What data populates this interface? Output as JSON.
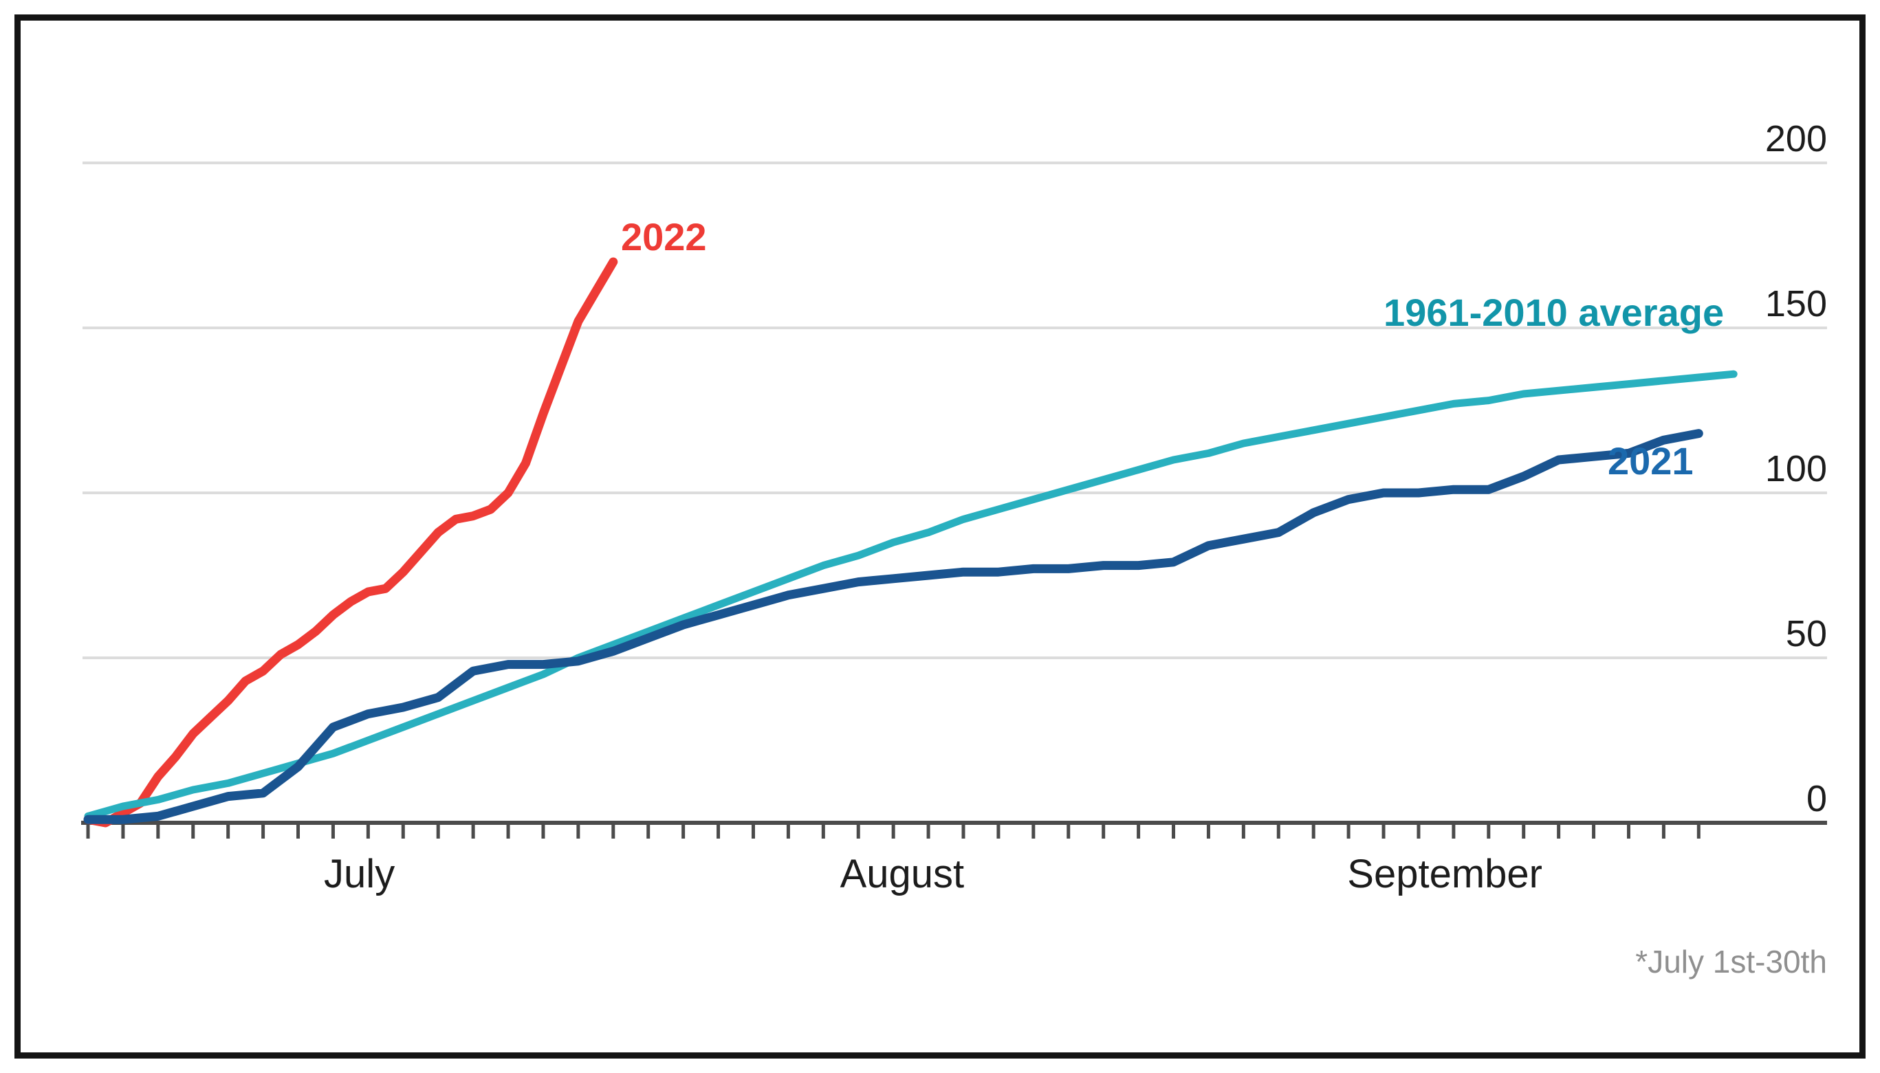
{
  "frame": {
    "border_color": "#141414",
    "background": "#ffffff"
  },
  "chart_data": {
    "type": "line",
    "title": "",
    "x_axis": {
      "start_date": "July 1",
      "end_date": "September 30",
      "month_labels": [
        "July",
        "August",
        "September"
      ],
      "month_center_days": [
        15.5,
        46.5,
        77.5
      ],
      "tick_interval_days": 2,
      "tick_day_range": [
        0,
        92
      ]
    },
    "y_axis": {
      "side": "right",
      "range": [
        0,
        200
      ],
      "ticks": [
        0,
        50,
        100,
        150,
        200
      ],
      "tick_labels": [
        "0",
        "50",
        "100",
        "150",
        "200"
      ],
      "gridlines_at": [
        50,
        100,
        150,
        200
      ],
      "grid_color": "#dcdcdc",
      "axis_color": "#4b4b4b"
    },
    "grid": "horizontal-only",
    "legend_position": "inline-labels",
    "footnote": "*July 1st-30th",
    "series": [
      {
        "name": "2022",
        "label": "2022",
        "color": "#ee3b35",
        "label_color": "#ee3b35",
        "stroke_width": 13,
        "points": [
          [
            0,
            1
          ],
          [
            1,
            0
          ],
          [
            2,
            3
          ],
          [
            3,
            6
          ],
          [
            4,
            14
          ],
          [
            5,
            20
          ],
          [
            6,
            27
          ],
          [
            7,
            32
          ],
          [
            8,
            37
          ],
          [
            9,
            43
          ],
          [
            10,
            46
          ],
          [
            11,
            51
          ],
          [
            12,
            54
          ],
          [
            13,
            58
          ],
          [
            14,
            63
          ],
          [
            15,
            67
          ],
          [
            16,
            70
          ],
          [
            17,
            71
          ],
          [
            18,
            76
          ],
          [
            19,
            82
          ],
          [
            20,
            88
          ],
          [
            21,
            92
          ],
          [
            22,
            93
          ],
          [
            23,
            95
          ],
          [
            24,
            100
          ],
          [
            25,
            109
          ],
          [
            26,
            124
          ],
          [
            27,
            138
          ],
          [
            28,
            152
          ],
          [
            29,
            161
          ],
          [
            30,
            170
          ]
        ]
      },
      {
        "name": "1961-2010 average",
        "label": "1961-2010 average",
        "color": "#29b0bf",
        "label_color": "#1295a9",
        "stroke_width": 11,
        "points": [
          [
            0,
            2
          ],
          [
            2,
            5
          ],
          [
            4,
            7
          ],
          [
            6,
            10
          ],
          [
            8,
            12
          ],
          [
            10,
            15
          ],
          [
            12,
            18
          ],
          [
            14,
            21
          ],
          [
            16,
            25
          ],
          [
            18,
            29
          ],
          [
            20,
            33
          ],
          [
            22,
            37
          ],
          [
            24,
            41
          ],
          [
            26,
            45
          ],
          [
            28,
            50
          ],
          [
            30,
            54
          ],
          [
            32,
            58
          ],
          [
            34,
            62
          ],
          [
            36,
            66
          ],
          [
            38,
            70
          ],
          [
            40,
            74
          ],
          [
            42,
            78
          ],
          [
            44,
            81
          ],
          [
            46,
            85
          ],
          [
            48,
            88
          ],
          [
            50,
            92
          ],
          [
            52,
            95
          ],
          [
            54,
            98
          ],
          [
            56,
            101
          ],
          [
            58,
            104
          ],
          [
            60,
            107
          ],
          [
            62,
            110
          ],
          [
            64,
            112
          ],
          [
            66,
            115
          ],
          [
            68,
            117
          ],
          [
            70,
            119
          ],
          [
            72,
            121
          ],
          [
            74,
            123
          ],
          [
            76,
            125
          ],
          [
            78,
            127
          ],
          [
            80,
            128
          ],
          [
            82,
            130
          ],
          [
            84,
            131
          ],
          [
            86,
            132
          ],
          [
            88,
            133
          ],
          [
            90,
            134
          ],
          [
            92,
            135
          ],
          [
            94,
            136
          ]
        ]
      },
      {
        "name": "2021",
        "label": "2021",
        "color": "#1a5490",
        "label_color": "#1b69ad",
        "stroke_width": 13,
        "points": [
          [
            0,
            1
          ],
          [
            2,
            1
          ],
          [
            4,
            2
          ],
          [
            6,
            5
          ],
          [
            8,
            8
          ],
          [
            10,
            9
          ],
          [
            12,
            17
          ],
          [
            14,
            29
          ],
          [
            16,
            33
          ],
          [
            18,
            35
          ],
          [
            20,
            38
          ],
          [
            22,
            46
          ],
          [
            24,
            48
          ],
          [
            26,
            48
          ],
          [
            28,
            49
          ],
          [
            30,
            52
          ],
          [
            32,
            56
          ],
          [
            34,
            60
          ],
          [
            36,
            63
          ],
          [
            38,
            66
          ],
          [
            40,
            69
          ],
          [
            42,
            71
          ],
          [
            44,
            73
          ],
          [
            46,
            74
          ],
          [
            48,
            75
          ],
          [
            50,
            76
          ],
          [
            52,
            76
          ],
          [
            54,
            77
          ],
          [
            56,
            77
          ],
          [
            58,
            78
          ],
          [
            60,
            78
          ],
          [
            62,
            79
          ],
          [
            64,
            84
          ],
          [
            66,
            86
          ],
          [
            68,
            88
          ],
          [
            70,
            94
          ],
          [
            72,
            98
          ],
          [
            74,
            100
          ],
          [
            76,
            100
          ],
          [
            78,
            101
          ],
          [
            80,
            101
          ],
          [
            82,
            105
          ],
          [
            84,
            110
          ],
          [
            86,
            111
          ],
          [
            88,
            112
          ],
          [
            90,
            116
          ],
          [
            92,
            118
          ]
        ]
      }
    ]
  }
}
